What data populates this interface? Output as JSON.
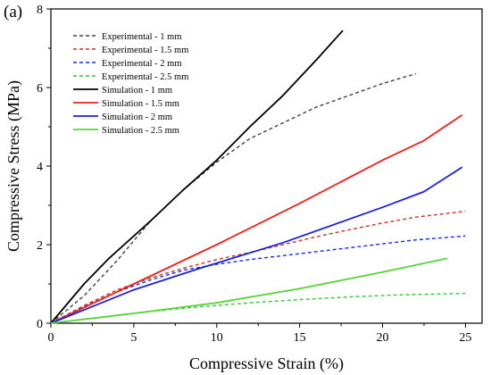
{
  "panel_label": "(a)",
  "chart_data": {
    "type": "line",
    "xlabel": "Compressive Strain (%)",
    "ylabel": "Compressive Stress (MPa)",
    "xlim": [
      0,
      26
    ],
    "ylim": [
      0,
      8
    ],
    "xticks": [
      0,
      5,
      10,
      15,
      20,
      25
    ],
    "yticks": [
      0,
      2,
      4,
      6,
      8
    ],
    "grid": false,
    "legend_position": "top-left",
    "series": [
      {
        "name": "Experimental - 1 mm",
        "color": "#404040",
        "dash": true,
        "x": [
          0,
          2,
          4,
          6,
          8,
          10,
          12,
          14,
          16,
          18,
          20,
          22
        ],
        "y": [
          0,
          0.7,
          1.6,
          2.6,
          3.4,
          4.1,
          4.7,
          5.1,
          5.5,
          5.8,
          6.1,
          6.35
        ]
      },
      {
        "name": "Experimental - 1.5 mm",
        "color": "#c0392b",
        "dash": true,
        "x": [
          0,
          2,
          4,
          6,
          8,
          10,
          12,
          14,
          16,
          18,
          20,
          22,
          25
        ],
        "y": [
          0,
          0.45,
          0.85,
          1.15,
          1.4,
          1.62,
          1.8,
          2.0,
          2.2,
          2.38,
          2.55,
          2.7,
          2.85
        ]
      },
      {
        "name": "Experimental - 2 mm",
        "color": "#1a2fd6",
        "dash": true,
        "x": [
          0,
          2,
          4,
          6,
          8,
          10,
          12,
          14,
          16,
          18,
          20,
          22,
          25
        ],
        "y": [
          0,
          0.42,
          0.8,
          1.1,
          1.35,
          1.5,
          1.62,
          1.72,
          1.82,
          1.92,
          2.02,
          2.12,
          2.22
        ]
      },
      {
        "name": "Experimental - 2.5 mm",
        "color": "#3ec43e",
        "dash": true,
        "x": [
          0,
          3,
          6,
          9,
          12,
          15,
          18,
          21,
          25
        ],
        "y": [
          0,
          0.15,
          0.3,
          0.42,
          0.52,
          0.6,
          0.67,
          0.72,
          0.76
        ]
      },
      {
        "name": "Simulation - 1 mm",
        "color": "#000000",
        "dash": false,
        "x": [
          0,
          2,
          3.5,
          6,
          8,
          10,
          12,
          14,
          16,
          17.6
        ],
        "y": [
          0,
          1.0,
          1.65,
          2.6,
          3.4,
          4.15,
          5.0,
          5.8,
          6.7,
          7.45
        ]
      },
      {
        "name": "Simulation - 1.5 mm",
        "color": "#e8221c",
        "dash": false,
        "x": [
          0,
          5,
          10,
          15,
          20,
          22.5,
          24.8
        ],
        "y": [
          0,
          1.0,
          2.0,
          3.05,
          4.15,
          4.65,
          5.3
        ]
      },
      {
        "name": "Simulation - 2 mm",
        "color": "#1c22d6",
        "dash": false,
        "x": [
          0,
          5,
          9,
          14,
          20,
          22.5,
          24.8
        ],
        "y": [
          0,
          0.85,
          1.4,
          2.05,
          2.95,
          3.35,
          3.97
        ]
      },
      {
        "name": "Simulation - 2.5 mm",
        "color": "#55d435",
        "dash": false,
        "x": [
          0,
          5,
          10,
          15,
          20,
          23.9
        ],
        "y": [
          0,
          0.25,
          0.52,
          0.88,
          1.3,
          1.65
        ]
      }
    ]
  }
}
